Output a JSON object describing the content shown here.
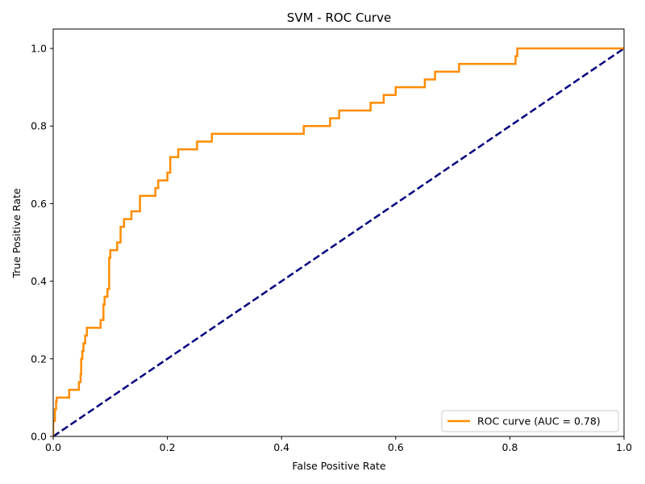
{
  "chart_data": {
    "type": "line",
    "title": "SVM - ROC Curve",
    "xlabel": "False Positive Rate",
    "ylabel": "True Positive Rate",
    "xlim": [
      0.0,
      1.0
    ],
    "ylim": [
      0.0,
      1.05
    ],
    "xticks": [
      0.0,
      0.2,
      0.4,
      0.6,
      0.8,
      1.0
    ],
    "yticks": [
      0.0,
      0.2,
      0.4,
      0.6,
      0.8,
      1.0
    ],
    "xtick_labels": [
      "0.0",
      "0.2",
      "0.4",
      "0.6",
      "0.8",
      "1.0"
    ],
    "ytick_labels": [
      "0.0",
      "0.2",
      "0.4",
      "0.6",
      "0.8",
      "1.0"
    ],
    "grid": false,
    "legend_position": "lower-right",
    "series": [
      {
        "name": "ROC curve (AUC = 0.78)",
        "color": "#ff8c00",
        "style": "solid",
        "x": [
          0.0,
          0.0,
          0.003,
          0.003,
          0.005,
          0.005,
          0.006,
          0.006,
          0.028,
          0.028,
          0.045,
          0.045,
          0.048,
          0.048,
          0.049,
          0.049,
          0.051,
          0.051,
          0.053,
          0.053,
          0.056,
          0.056,
          0.059,
          0.059,
          0.062,
          0.062,
          0.083,
          0.083,
          0.088,
          0.088,
          0.09,
          0.09,
          0.095,
          0.095,
          0.098,
          0.098,
          0.1,
          0.1,
          0.103,
          0.103,
          0.112,
          0.112,
          0.118,
          0.118,
          0.124,
          0.124,
          0.137,
          0.137,
          0.152,
          0.152,
          0.179,
          0.179,
          0.184,
          0.184,
          0.2,
          0.2,
          0.205,
          0.205,
          0.219,
          0.219,
          0.252,
          0.252,
          0.278,
          0.278,
          0.439,
          0.439,
          0.485,
          0.485,
          0.501,
          0.501,
          0.556,
          0.556,
          0.579,
          0.579,
          0.6,
          0.6,
          0.651,
          0.651,
          0.669,
          0.669,
          0.711,
          0.711,
          0.81,
          0.81,
          0.813,
          0.813,
          1.0
        ],
        "y": [
          0.0,
          0.04,
          0.04,
          0.07,
          0.07,
          0.09,
          0.09,
          0.1,
          0.1,
          0.12,
          0.12,
          0.14,
          0.14,
          0.16,
          0.16,
          0.2,
          0.2,
          0.22,
          0.22,
          0.24,
          0.24,
          0.26,
          0.26,
          0.28,
          0.28,
          0.28,
          0.28,
          0.3,
          0.3,
          0.34,
          0.34,
          0.36,
          0.36,
          0.38,
          0.38,
          0.46,
          0.46,
          0.48,
          0.48,
          0.48,
          0.48,
          0.5,
          0.5,
          0.54,
          0.54,
          0.56,
          0.56,
          0.58,
          0.58,
          0.62,
          0.62,
          0.64,
          0.64,
          0.66,
          0.66,
          0.68,
          0.68,
          0.72,
          0.72,
          0.74,
          0.74,
          0.76,
          0.76,
          0.78,
          0.78,
          0.8,
          0.8,
          0.82,
          0.82,
          0.84,
          0.84,
          0.86,
          0.86,
          0.88,
          0.88,
          0.9,
          0.9,
          0.92,
          0.92,
          0.94,
          0.94,
          0.96,
          0.96,
          0.98,
          0.98,
          1.0,
          1.0
        ]
      },
      {
        "name": "",
        "color": "#000080",
        "style": "dashed",
        "x": [
          0.0,
          1.0
        ],
        "y": [
          0.0,
          1.0
        ]
      }
    ]
  }
}
